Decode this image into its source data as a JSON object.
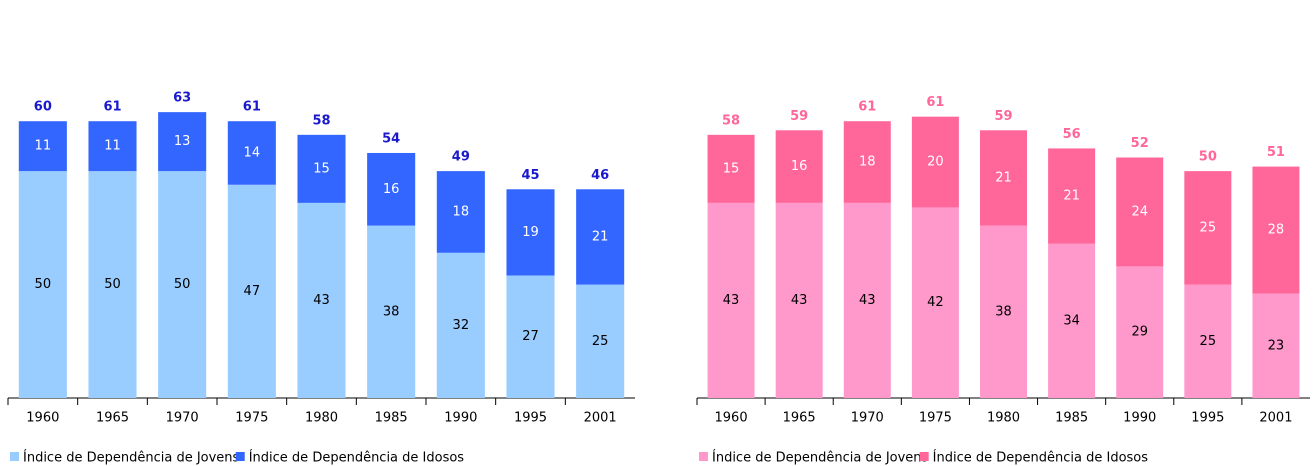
{
  "chart_data": [
    {
      "type": "stacked-bar",
      "categories": [
        "1960",
        "1965",
        "1970",
        "1975",
        "1980",
        "1985",
        "1990",
        "1995",
        "2001"
      ],
      "series": [
        {
          "name": "Índice de Dependência de Jovens",
          "color": "#99ccff",
          "values": [
            50,
            50,
            50,
            47,
            43,
            38,
            32,
            27,
            25
          ]
        },
        {
          "name": "Índice de Dependência de Idosos",
          "color": "#3366ff",
          "values": [
            11,
            11,
            13,
            14,
            15,
            16,
            18,
            19,
            21
          ]
        }
      ],
      "totals": [
        60,
        61,
        63,
        61,
        58,
        54,
        49,
        45,
        46
      ],
      "totals_color": "#1a1acc",
      "ylim": [
        0,
        80
      ]
    },
    {
      "type": "stacked-bar",
      "categories": [
        "1960",
        "1965",
        "1970",
        "1975",
        "1980",
        "1985",
        "1990",
        "1995",
        "2001"
      ],
      "series": [
        {
          "name": "Índice de Dependência de Jovens",
          "color": "#ff99cc",
          "values": [
            43,
            43,
            43,
            42,
            38,
            34,
            29,
            25,
            23
          ]
        },
        {
          "name": "Índice de Dependência de Idosos",
          "color": "#ff6699",
          "values": [
            15,
            16,
            18,
            20,
            21,
            21,
            24,
            25,
            28
          ]
        }
      ],
      "totals": [
        58,
        59,
        61,
        61,
        59,
        56,
        52,
        50,
        51
      ],
      "totals_color": "#ff6699",
      "ylim": [
        0,
        80
      ]
    }
  ]
}
